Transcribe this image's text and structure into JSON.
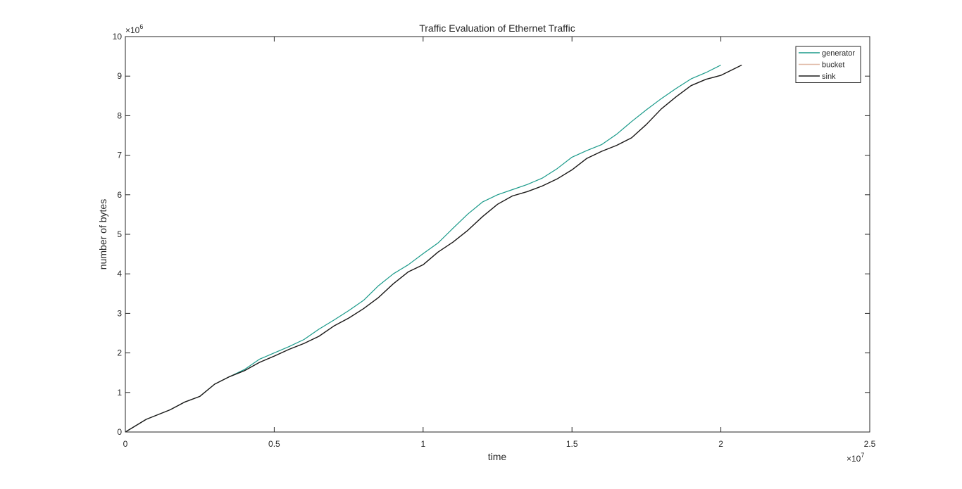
{
  "chart_data": {
    "type": "line",
    "title": "Traffic Evaluation of Ethernet Traffic",
    "xlabel": "time",
    "ylabel": "number of bytes",
    "x_exponent_label": "×10",
    "x_exponent": "7",
    "y_exponent_label": "×10",
    "y_exponent": "6",
    "xlim": [
      0,
      25000000
    ],
    "ylim": [
      0,
      10000000
    ],
    "x_tick_values": [
      0,
      5000000,
      10000000,
      15000000,
      20000000,
      25000000
    ],
    "x_tick_labels": [
      "0",
      "0.5",
      "1",
      "1.5",
      "2",
      "2.5"
    ],
    "y_tick_values": [
      0,
      1000000,
      2000000,
      3000000,
      4000000,
      5000000,
      6000000,
      7000000,
      8000000,
      9000000,
      10000000
    ],
    "y_tick_labels": [
      "0",
      "1",
      "2",
      "3",
      "4",
      "5",
      "6",
      "7",
      "8",
      "9",
      "10"
    ],
    "grid": false,
    "legend_position": "top-right",
    "series": [
      {
        "name": "generator",
        "color": "#1a9a8a",
        "x": [
          0,
          700000,
          1500000,
          2000000,
          2500000,
          3000000,
          3500000,
          4000000,
          4500000,
          5000000,
          5500000,
          6000000,
          6500000,
          7000000,
          7500000,
          8000000,
          8500000,
          9000000,
          9500000,
          10000000,
          10500000,
          11000000,
          11500000,
          12000000,
          12500000,
          13000000,
          13500000,
          14000000,
          14500000,
          15000000,
          15500000,
          16000000,
          16500000,
          17000000,
          17500000,
          18000000,
          18500000,
          19000000,
          19500000,
          20000000
        ],
        "y": [
          0,
          320000,
          560000,
          760000,
          900000,
          1210000,
          1400000,
          1580000,
          1840000,
          2000000,
          2160000,
          2340000,
          2600000,
          2830000,
          3070000,
          3330000,
          3700000,
          4000000,
          4230000,
          4510000,
          4780000,
          5150000,
          5510000,
          5820000,
          6000000,
          6130000,
          6260000,
          6420000,
          6660000,
          6950000,
          7120000,
          7270000,
          7530000,
          7850000,
          8150000,
          8430000,
          8690000,
          8930000,
          9090000,
          9280000
        ]
      },
      {
        "name": "bucket",
        "color": "#e0b9a6",
        "x": [
          0,
          700000,
          1500000,
          2000000,
          2500000,
          3000000,
          3500000,
          4000000,
          4500000,
          5000000,
          5500000,
          6000000,
          6500000,
          7000000,
          7500000,
          8000000,
          8500000,
          9000000,
          9500000,
          10000000,
          10500000,
          11000000,
          11500000,
          12000000,
          12500000,
          13000000,
          13500000,
          14000000,
          14500000,
          15000000,
          15500000,
          16000000,
          16500000,
          17000000,
          17500000,
          18000000,
          18500000,
          19000000,
          19500000,
          20000000,
          20700000
        ],
        "y": [
          0,
          320000,
          560000,
          760000,
          900000,
          1210000,
          1400000,
          1550000,
          1760000,
          1920000,
          2090000,
          2240000,
          2420000,
          2680000,
          2880000,
          3120000,
          3400000,
          3750000,
          4050000,
          4230000,
          4550000,
          4800000,
          5100000,
          5450000,
          5760000,
          5970000,
          6080000,
          6220000,
          6400000,
          6630000,
          6920000,
          7100000,
          7250000,
          7440000,
          7780000,
          8170000,
          8480000,
          8760000,
          8920000,
          9020000,
          9280000
        ]
      },
      {
        "name": "sink",
        "color": "#1a1a1a",
        "x": [
          0,
          700000,
          1500000,
          2000000,
          2500000,
          3000000,
          3500000,
          4000000,
          4500000,
          5000000,
          5500000,
          6000000,
          6500000,
          7000000,
          7500000,
          8000000,
          8500000,
          9000000,
          9500000,
          10000000,
          10500000,
          11000000,
          11500000,
          12000000,
          12500000,
          13000000,
          13500000,
          14000000,
          14500000,
          15000000,
          15500000,
          16000000,
          16500000,
          17000000,
          17500000,
          18000000,
          18500000,
          19000000,
          19500000,
          20000000,
          20700000
        ],
        "y": [
          0,
          320000,
          560000,
          760000,
          900000,
          1210000,
          1400000,
          1550000,
          1760000,
          1920000,
          2090000,
          2240000,
          2420000,
          2680000,
          2880000,
          3120000,
          3400000,
          3750000,
          4050000,
          4230000,
          4550000,
          4800000,
          5100000,
          5450000,
          5760000,
          5970000,
          6080000,
          6220000,
          6400000,
          6630000,
          6920000,
          7100000,
          7250000,
          7440000,
          7780000,
          8170000,
          8480000,
          8760000,
          8920000,
          9020000,
          9280000
        ]
      }
    ]
  }
}
